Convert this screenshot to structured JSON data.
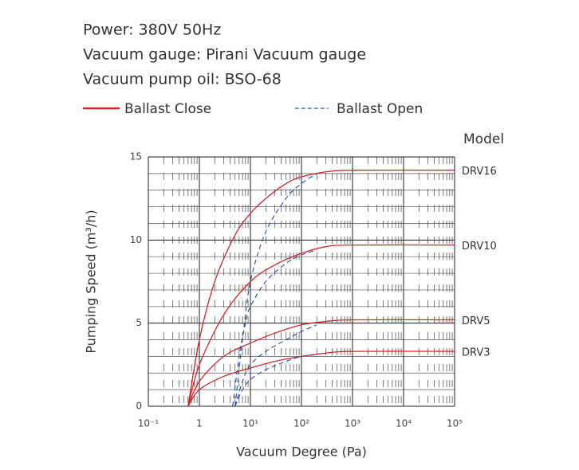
{
  "chart_data": {
    "type": "line",
    "specs": [
      "Power: 380V 50Hz",
      "Vacuum gauge: Pirani Vacuum gauge",
      "Vacuum pump oil: BSO-68"
    ],
    "xlabel": "Vacuum Degree (Pa)",
    "ylabel": "Pumping Speed (m³/h)",
    "log_x": true,
    "grid": true,
    "xlim": [
      0.1,
      100000
    ],
    "xticks": [
      {
        "value": 0.1,
        "label": "10⁻¹"
      },
      1,
      {
        "value": 10,
        "label": "10¹"
      },
      {
        "value": 100,
        "label": "10²"
      },
      {
        "value": 1000,
        "label": "10³"
      },
      {
        "value": 10000,
        "label": "10⁴"
      },
      {
        "value": 100000,
        "label": "10⁵"
      }
    ],
    "ylim": [
      0,
      15
    ],
    "yticks": [
      0,
      5,
      10,
      15
    ],
    "model_title": "Model",
    "models": [
      "DRV16",
      "DRV10",
      "DRV5",
      "DRV3"
    ],
    "series": [
      {
        "name": "Ballast Close",
        "color": "#d0252c",
        "dash": false,
        "curves": [
          {
            "x": [
              0.6,
              1,
              2,
              5,
              10,
              20,
              50,
              100,
              300,
              1000,
              100000
            ],
            "values": [
              0,
              4,
              7.5,
              10.3,
              11.6,
              12.5,
              13.4,
              13.8,
              14.1,
              14.2,
              14.2
            ]
          },
          {
            "x": [
              0.6,
              1,
              3,
              10,
              30,
              100,
              300,
              1000,
              100000
            ],
            "values": [
              0,
              2.5,
              5.5,
              7.5,
              8.5,
              9.2,
              9.6,
              9.7,
              9.7
            ]
          },
          {
            "x": [
              0.6,
              1,
              3,
              10,
              30,
              100,
              300,
              1000,
              100000
            ],
            "values": [
              0,
              1.5,
              3,
              3.8,
              4.4,
              4.9,
              5.1,
              5.2,
              5.2
            ]
          },
          {
            "x": [
              0.6,
              1,
              3,
              10,
              30,
              100,
              300,
              1000,
              100000
            ],
            "values": [
              0,
              1,
              1.8,
              2.3,
              2.7,
              3.0,
              3.2,
              3.3,
              3.3
            ]
          }
        ]
      },
      {
        "name": "Ballast Open",
        "color": "#2a4d9b",
        "dash": true,
        "curves": [
          {
            "x": [
              5,
              7,
              10,
              20,
              50,
              100,
              200
            ],
            "values": [
              0,
              4,
              7.5,
              10.5,
              12.5,
              13.4,
              14.0
            ]
          },
          {
            "x": [
              4.5,
              6,
              8,
              10,
              20,
              50,
              100,
              200
            ],
            "values": [
              0,
              3,
              5,
              6,
              7.5,
              8.6,
              9.1,
              9.4
            ]
          },
          {
            "x": [
              5,
              7,
              10,
              20,
              50,
              100,
              200
            ],
            "values": [
              0,
              1.5,
              2.5,
              3.3,
              4.0,
              4.5,
              4.9
            ]
          },
          {
            "x": [
              5,
              7,
              10,
              20,
              50,
              100,
              200
            ],
            "values": [
              0,
              1,
              1.6,
              2.2,
              2.7,
              3.0,
              3.1
            ]
          }
        ]
      }
    ]
  }
}
